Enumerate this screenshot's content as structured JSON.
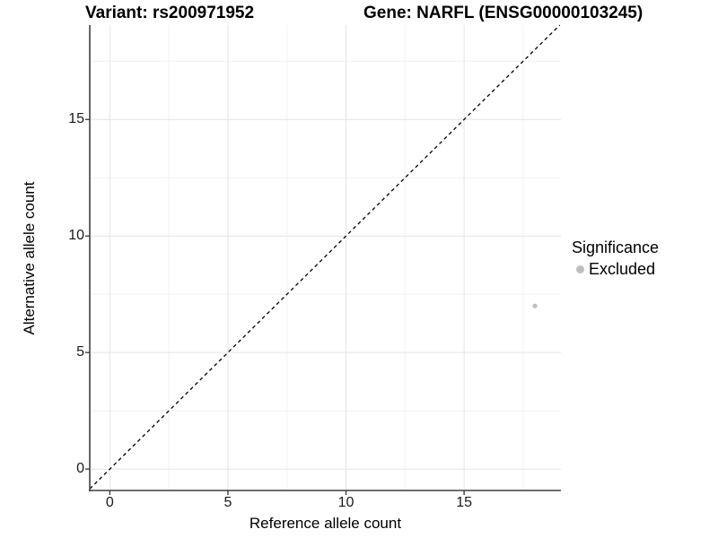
{
  "header": {
    "variant_title": "Variant: rs200971952",
    "gene_title": "Gene: NARFL (ENSG00000103245)"
  },
  "chart_data": {
    "type": "scatter",
    "xlabel": "Reference allele count",
    "ylabel": "Alternative allele count",
    "xlim": [
      -0.85,
      19.1
    ],
    "ylim": [
      -0.92,
      19.05
    ],
    "x_ticks": [
      0,
      5,
      10,
      15
    ],
    "y_ticks": [
      0,
      5,
      10,
      15
    ],
    "x_minor_ticks": [
      2.5,
      7.5,
      12.5,
      17.5
    ],
    "y_minor_ticks": [
      2.5,
      7.5,
      12.5,
      17.5
    ],
    "grid": "major+minor",
    "reference_line": {
      "slope": 1,
      "intercept": 0,
      "linetype": "dashed",
      "color": "#000000"
    },
    "series": [
      {
        "name": "Excluded",
        "color": "#bebebe",
        "marker": "circle",
        "points": [
          {
            "x": 18,
            "y": 7
          }
        ]
      }
    ],
    "legend": {
      "title": "Significance",
      "position": "right",
      "entries": [
        {
          "label": "Excluded",
          "color": "#bebebe",
          "marker": "circle"
        }
      ]
    }
  },
  "colors": {
    "background": "#ffffff",
    "grid_major": "#e4e4e4",
    "grid_minor": "#f1f1f1",
    "axis_line": "#3f3f3f",
    "point": "#bebebe",
    "text": "#000000"
  }
}
